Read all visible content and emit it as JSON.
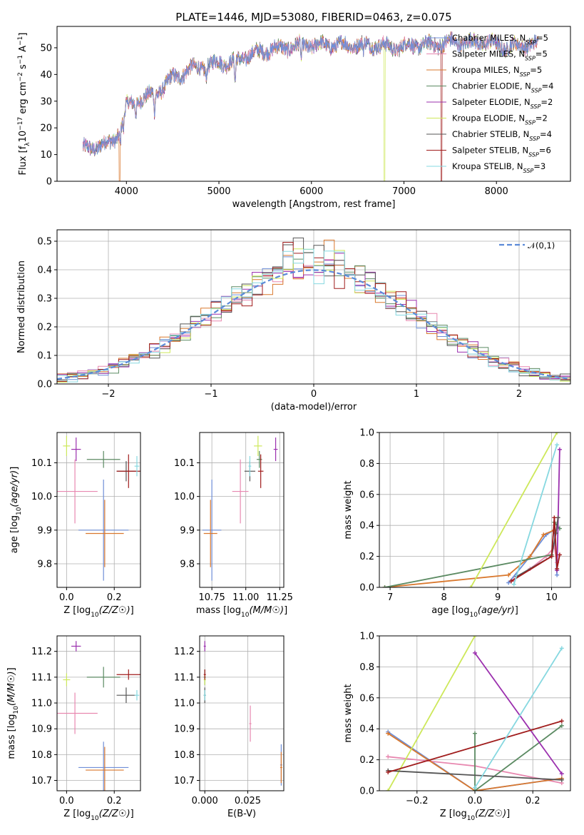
{
  "figure_title": "PLATE=1446, MJD=53080, FIBERID=0463, z=0.075",
  "models": [
    {
      "name": "Chabrier MILES",
      "nssp": "5",
      "color": "#6f8fd8"
    },
    {
      "name": "Salpeter MILES",
      "nssp": "5",
      "color": "#e888b0"
    },
    {
      "name": "Kroupa MILES",
      "nssp": "5",
      "color": "#d9782e"
    },
    {
      "name": "Chabrier ELODIE",
      "nssp": "4",
      "color": "#5b8a62"
    },
    {
      "name": "Salpeter ELODIE",
      "nssp": "2",
      "color": "#9b2fae"
    },
    {
      "name": "Kroupa ELODIE",
      "nssp": "2",
      "color": "#cde85a"
    },
    {
      "name": "Chabrier STELIB",
      "nssp": "4",
      "color": "#555555"
    },
    {
      "name": "Salpeter STELIB",
      "nssp": "6",
      "color": "#a01c1c"
    },
    {
      "name": "Kroupa STELIB",
      "nssp": "3",
      "color": "#86d8e0"
    }
  ],
  "chart_data": [
    {
      "id": "spectrum",
      "type": "line",
      "xlabel": "wavelength [Angstrom, rest frame]",
      "ylabel": "Flux [f_λ 10^-17 erg cm^-2 s^-1 A^-1]",
      "xlim": [
        3250,
        8800
      ],
      "ylim": [
        0,
        58
      ],
      "xticks": [
        4000,
        5000,
        6000,
        7000,
        8000
      ],
      "yticks": [
        0,
        10,
        20,
        30,
        40,
        50
      ],
      "grid": false,
      "legend_position": "top-right",
      "continuum": [
        [
          3530,
          12
        ],
        [
          3800,
          14
        ],
        [
          3900,
          17
        ],
        [
          4000,
          28
        ],
        [
          4100,
          30
        ],
        [
          4200,
          31
        ],
        [
          4300,
          33
        ],
        [
          4400,
          35
        ],
        [
          4500,
          39
        ],
        [
          4600,
          40
        ],
        [
          4700,
          42
        ],
        [
          4800,
          43
        ],
        [
          4900,
          43
        ],
        [
          5000,
          45
        ],
        [
          5100,
          44
        ],
        [
          5300,
          47
        ],
        [
          5500,
          49
        ],
        [
          5700,
          50
        ],
        [
          5900,
          51
        ],
        [
          6100,
          51
        ],
        [
          6300,
          51
        ],
        [
          6500,
          51
        ],
        [
          6700,
          51
        ],
        [
          6900,
          50
        ],
        [
          7100,
          51
        ],
        [
          7300,
          51
        ],
        [
          7500,
          52
        ],
        [
          7700,
          52
        ],
        [
          7900,
          52
        ],
        [
          8100,
          50
        ],
        [
          8300,
          51
        ],
        [
          8450,
          51
        ]
      ],
      "absorption_features": [
        [
          3933,
          6
        ],
        [
          3968,
          6
        ],
        [
          4102,
          4
        ],
        [
          4304,
          7
        ],
        [
          4861,
          4
        ],
        [
          5175,
          9
        ],
        [
          5890,
          6
        ],
        [
          6563,
          3
        ]
      ],
      "dropouts": [
        {
          "model": "Kroupa MILES",
          "x": 3925
        },
        {
          "model": "Kroupa ELODIE",
          "x": 6790
        },
        {
          "model": "Salpeter STELIB",
          "x": 7405
        }
      ]
    },
    {
      "id": "residual-distribution",
      "type": "histogram",
      "xlabel": "(data-model)/error",
      "ylabel": "Normed distribution",
      "xlim": [
        -2.5,
        2.5
      ],
      "ylim": [
        0,
        0.54
      ],
      "xticks": [
        -2,
        -1,
        0,
        1,
        2
      ],
      "yticks": [
        0.0,
        0.1,
        0.2,
        0.3,
        0.4,
        0.5
      ],
      "grid": true,
      "legend_position": "top-right",
      "reference_curve": {
        "label": "𝒩(0,1)",
        "mean": 0,
        "sigma": 1,
        "color": "#5b8ad8"
      },
      "bin_width": 0.1
    },
    {
      "id": "age-vs-metallicity",
      "type": "errorbar",
      "xlabel": "Z [log10(Z/Z☉)]",
      "ylabel": "age  [log10(age/yr)]",
      "xlim": [
        -0.04,
        0.31
      ],
      "ylim": [
        9.73,
        10.19
      ],
      "xticks": [
        0.0,
        0.2
      ],
      "yticks": [
        9.8,
        9.9,
        10.0,
        10.1
      ],
      "grid": true,
      "points": [
        {
          "model": "Chabrier MILES",
          "x": 0.155,
          "y": 9.9,
          "xerr": 0.105,
          "yerr": 0.15
        },
        {
          "model": "Salpeter MILES",
          "x": 0.035,
          "y": 10.015,
          "xerr": 0.095,
          "yerr": 0.095
        },
        {
          "model": "Kroupa MILES",
          "x": 0.16,
          "y": 9.89,
          "xerr": 0.08,
          "yerr": 0.1
        },
        {
          "model": "Chabrier ELODIE",
          "x": 0.155,
          "y": 10.11,
          "xerr": 0.07,
          "yerr": 0.025
        },
        {
          "model": "Salpeter ELODIE",
          "x": 0.04,
          "y": 10.14,
          "xerr": 0.02,
          "yerr": 0.035
        },
        {
          "model": "Kroupa ELODIE",
          "x": 0.0,
          "y": 10.15,
          "xerr": 0.015,
          "yerr": 0.03
        },
        {
          "model": "Chabrier STELIB",
          "x": 0.25,
          "y": 10.075,
          "xerr": 0.04,
          "yerr": 0.03
        },
        {
          "model": "Salpeter STELIB",
          "x": 0.26,
          "y": 10.075,
          "xerr": 0.05,
          "yerr": 0.05
        },
        {
          "model": "Kroupa STELIB",
          "x": 0.295,
          "y": 10.09,
          "xerr": 0.01,
          "yerr": 0.03
        }
      ]
    },
    {
      "id": "age-vs-mass",
      "type": "errorbar",
      "xlabel": "mass [log10(M/M☉)]",
      "ylabel": "",
      "xlim": [
        10.66,
        11.28
      ],
      "ylim": [
        9.73,
        10.19
      ],
      "xticks": [
        10.75,
        11.0,
        11.25
      ],
      "yticks": [
        9.8,
        9.9,
        10.0,
        10.1
      ],
      "grid": true,
      "points": [
        {
          "model": "Chabrier MILES",
          "x": 10.75,
          "y": 9.9,
          "xerr": 0.07,
          "yerr": 0.15
        },
        {
          "model": "Salpeter MILES",
          "x": 10.96,
          "y": 10.015,
          "xerr": 0.06,
          "yerr": 0.095
        },
        {
          "model": "Kroupa MILES",
          "x": 10.74,
          "y": 9.89,
          "xerr": 0.05,
          "yerr": 0.1
        },
        {
          "model": "Chabrier ELODIE",
          "x": 11.1,
          "y": 10.11,
          "xerr": 0.02,
          "yerr": 0.025
        },
        {
          "model": "Salpeter ELODIE",
          "x": 11.22,
          "y": 10.14,
          "xerr": 0.015,
          "yerr": 0.035
        },
        {
          "model": "Kroupa ELODIE",
          "x": 11.09,
          "y": 10.15,
          "xerr": 0.03,
          "yerr": 0.03
        },
        {
          "model": "Chabrier STELIB",
          "x": 11.03,
          "y": 10.075,
          "xerr": 0.04,
          "yerr": 0.03
        },
        {
          "model": "Salpeter STELIB",
          "x": 11.11,
          "y": 10.075,
          "xerr": 0.02,
          "yerr": 0.05
        },
        {
          "model": "Kroupa STELIB",
          "x": 11.03,
          "y": 10.09,
          "xerr": 0.01,
          "yerr": 0.03
        }
      ]
    },
    {
      "id": "weight-vs-age",
      "type": "line",
      "xlabel": "age  [log10(age/yr)]",
      "ylabel": "mass weight",
      "xlim": [
        6.8,
        10.35
      ],
      "ylim": [
        0,
        1
      ],
      "xticks": [
        7,
        8,
        9,
        10
      ],
      "yticks": [
        0.0,
        0.2,
        0.4,
        0.6,
        0.8,
        1.0
      ],
      "grid": true,
      "series": [
        {
          "model": "Chabrier MILES",
          "points": [
            [
              9.2,
              0.03
            ],
            [
              9.6,
              0.2
            ],
            [
              9.9,
              0.34
            ],
            [
              10.05,
              0.37
            ],
            [
              10.1,
              0.08
            ]
          ]
        },
        {
          "model": "Salpeter MILES",
          "points": [
            [
              9.3,
              0.05
            ],
            [
              9.6,
              0.12
            ],
            [
              9.9,
              0.2
            ],
            [
              10.05,
              0.26
            ],
            [
              10.1,
              0.16
            ]
          ]
        },
        {
          "model": "Kroupa MILES",
          "points": [
            [
              6.9,
              0.0
            ],
            [
              9.2,
              0.08
            ],
            [
              9.6,
              0.2
            ],
            [
              9.85,
              0.34
            ],
            [
              10.05,
              0.37
            ]
          ]
        },
        {
          "model": "Chabrier ELODIE",
          "points": [
            [
              6.9,
              0.0
            ],
            [
              10.0,
              0.21
            ],
            [
              10.05,
              0.42
            ],
            [
              10.15,
              0.38
            ]
          ]
        },
        {
          "model": "Salpeter ELODIE",
          "points": [
            [
              10.1,
              0.11
            ],
            [
              10.15,
              0.89
            ]
          ]
        },
        {
          "model": "Kroupa ELODIE",
          "points": [
            [
              8.5,
              0.0
            ],
            [
              10.1,
              1.0
            ]
          ]
        },
        {
          "model": "Chabrier STELIB",
          "points": [
            [
              9.35,
              0.07
            ],
            [
              10.0,
              0.2
            ],
            [
              10.08,
              0.35
            ],
            [
              10.12,
              0.45
            ]
          ]
        },
        {
          "model": "Salpeter STELIB",
          "points": [
            [
              9.25,
              0.04
            ],
            [
              10.0,
              0.2
            ],
            [
              10.05,
              0.45
            ],
            [
              10.1,
              0.12
            ],
            [
              10.15,
              0.21
            ]
          ]
        },
        {
          "model": "Kroupa STELIB",
          "points": [
            [
              9.3,
              0.02
            ],
            [
              10.1,
              0.92
            ]
          ]
        }
      ]
    },
    {
      "id": "mass-vs-metallicity",
      "type": "errorbar",
      "xlabel": "Z [log10(Z/Z☉)]",
      "ylabel": "mass [log10(M/M☉)]",
      "xlim": [
        -0.04,
        0.31
      ],
      "ylim": [
        10.66,
        11.26
      ],
      "xticks": [
        0.0,
        0.2
      ],
      "yticks": [
        10.7,
        10.8,
        10.9,
        11.0,
        11.1,
        11.2
      ],
      "grid": true,
      "points": [
        {
          "model": "Chabrier MILES",
          "x": 0.155,
          "y": 10.75,
          "xerr": 0.105,
          "yerr": 0.1
        },
        {
          "model": "Salpeter MILES",
          "x": 0.035,
          "y": 10.96,
          "xerr": 0.095,
          "yerr": 0.08
        },
        {
          "model": "Kroupa MILES",
          "x": 0.16,
          "y": 10.74,
          "xerr": 0.08,
          "yerr": 0.09
        },
        {
          "model": "Chabrier ELODIE",
          "x": 0.155,
          "y": 11.1,
          "xerr": 0.07,
          "yerr": 0.04
        },
        {
          "model": "Salpeter ELODIE",
          "x": 0.04,
          "y": 11.22,
          "xerr": 0.02,
          "yerr": 0.02
        },
        {
          "model": "Kroupa ELODIE",
          "x": 0.0,
          "y": 11.09,
          "xerr": 0.015,
          "yerr": 0.025
        },
        {
          "model": "Chabrier STELIB",
          "x": 0.25,
          "y": 11.03,
          "xerr": 0.04,
          "yerr": 0.03
        },
        {
          "model": "Salpeter STELIB",
          "x": 0.26,
          "y": 11.11,
          "xerr": 0.05,
          "yerr": 0.02
        },
        {
          "model": "Kroupa STELIB",
          "x": 0.295,
          "y": 11.03,
          "xerr": 0.01,
          "yerr": 0.02
        }
      ]
    },
    {
      "id": "mass-vs-extinction",
      "type": "errorbar",
      "xlabel": "E(B-V)",
      "ylabel": "",
      "xlim": [
        -0.003,
        0.046
      ],
      "ylim": [
        10.66,
        11.26
      ],
      "xticks": [
        0.0,
        0.025
      ],
      "yticks": [
        10.7,
        10.8,
        10.9,
        11.0,
        11.1,
        11.2
      ],
      "grid": true,
      "points": [
        {
          "model": "Chabrier MILES",
          "x": 0.0445,
          "y": 10.76,
          "xerr": 0.0,
          "yerr": 0.08
        },
        {
          "model": "Salpeter MILES",
          "x": 0.0265,
          "y": 10.92,
          "xerr": 0.0,
          "yerr": 0.07
        },
        {
          "model": "Kroupa MILES",
          "x": 0.0445,
          "y": 10.75,
          "xerr": 0.0,
          "yerr": 0.06
        },
        {
          "model": "Chabrier ELODIE",
          "x": 0.0,
          "y": 11.1,
          "xerr": 0.0,
          "yerr": 0.03
        },
        {
          "model": "Salpeter ELODIE",
          "x": 0.0,
          "y": 11.22,
          "xerr": 0.0,
          "yerr": 0.02
        },
        {
          "model": "Kroupa ELODIE",
          "x": 0.0,
          "y": 11.09,
          "xerr": 0.0,
          "yerr": 0.02
        },
        {
          "model": "Chabrier STELIB",
          "x": 0.0,
          "y": 11.03,
          "xerr": 0.0,
          "yerr": 0.03
        },
        {
          "model": "Salpeter STELIB",
          "x": 0.0,
          "y": 11.11,
          "xerr": 0.0,
          "yerr": 0.02
        },
        {
          "model": "Kroupa STELIB",
          "x": 0.0,
          "y": 11.03,
          "xerr": 0.0,
          "yerr": 0.02
        }
      ]
    },
    {
      "id": "weight-vs-metallicity",
      "type": "line",
      "xlabel": "Z [log10(Z/Z☉)]",
      "ylabel": "mass weight",
      "xlim": [
        -0.33,
        0.33
      ],
      "ylim": [
        0,
        1
      ],
      "xticks": [
        -0.2,
        0.0,
        0.2
      ],
      "yticks": [
        0.0,
        0.2,
        0.4,
        0.6,
        0.8,
        1.0
      ],
      "grid": true,
      "series": [
        {
          "model": "Chabrier MILES",
          "points": [
            [
              -0.3,
              0.38
            ],
            [
              0.0,
              0.0
            ],
            [
              0.3,
              0.08
            ]
          ]
        },
        {
          "model": "Salpeter MILES",
          "points": [
            [
              -0.3,
              0.22
            ],
            [
              0.0,
              0.16
            ],
            [
              0.3,
              0.05
            ]
          ]
        },
        {
          "model": "Kroupa MILES",
          "points": [
            [
              -0.3,
              0.37
            ],
            [
              0.0,
              0.0
            ],
            [
              0.3,
              0.08
            ]
          ]
        },
        {
          "model": "Chabrier ELODIE",
          "points": [
            [
              0.0,
              0.37
            ],
            [
              0.0,
              0.0
            ],
            [
              0.3,
              0.42
            ]
          ]
        },
        {
          "model": "Salpeter ELODIE",
          "points": [
            [
              0.0,
              0.89
            ],
            [
              0.3,
              0.11
            ]
          ]
        },
        {
          "model": "Kroupa ELODIE",
          "points": [
            [
              -0.3,
              0.0
            ],
            [
              0.0,
              1.0
            ]
          ]
        },
        {
          "model": "Chabrier STELIB",
          "points": [
            [
              -0.3,
              0.13
            ],
            [
              0.3,
              0.07
            ]
          ]
        },
        {
          "model": "Salpeter STELIB",
          "points": [
            [
              -0.3,
              0.12
            ],
            [
              0.3,
              0.45
            ]
          ]
        },
        {
          "model": "Kroupa STELIB",
          "points": [
            [
              0.0,
              0.02
            ],
            [
              0.3,
              0.92
            ]
          ]
        }
      ]
    }
  ]
}
